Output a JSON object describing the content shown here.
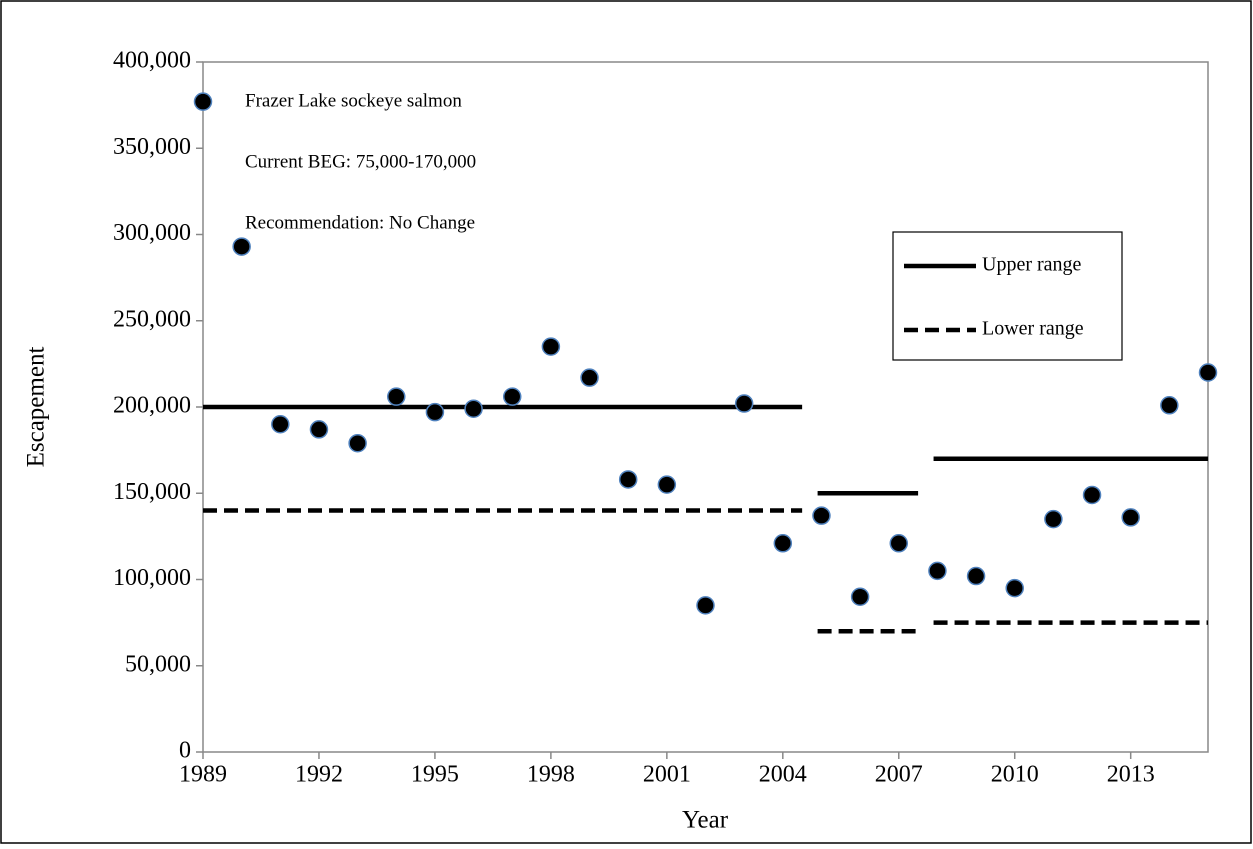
{
  "chart_data": {
    "type": "scatter",
    "annotations": [
      "Frazer  Lake sockeye salmon",
      "Current BEG: 75,000-170,000",
      "Recommendation: No Change"
    ],
    "x_label": "Year",
    "y_label": "Escapement",
    "xlim": [
      1989,
      2015
    ],
    "xticks": [
      1989,
      1992,
      1995,
      1998,
      2001,
      2004,
      2007,
      2010,
      2013
    ],
    "ylim": [
      0,
      400000
    ],
    "yticks": [
      0,
      {
        "value": 50000,
        "label": "50,000"
      },
      {
        "value": 100000,
        "label": "100,000"
      },
      {
        "value": 150000,
        "label": "150,000"
      },
      {
        "value": 200000,
        "label": "200,000"
      },
      {
        "value": 250000,
        "label": "250,000"
      },
      {
        "value": 300000,
        "label": "300,000"
      },
      {
        "value": 350000,
        "label": "350,000"
      },
      {
        "value": 400000,
        "label": "400,000"
      }
    ],
    "points": {
      "color": "#000000",
      "edge_color": "#4f81bd",
      "x": [
        1989,
        1990,
        1991,
        1992,
        1993,
        1994,
        1995,
        1996,
        1997,
        1998,
        1999,
        2000,
        2001,
        2002,
        2003,
        2004,
        2005,
        2006,
        2007,
        2008,
        2009,
        2010,
        2011,
        2012,
        2013,
        2014,
        2015
      ],
      "values": [
        377000,
        293000,
        190000,
        187000,
        179000,
        206000,
        197000,
        199000,
        206000,
        235000,
        217000,
        158000,
        155000,
        85000,
        202000,
        121000,
        137000,
        90000,
        121000,
        105000,
        102000,
        95000,
        135000,
        149000,
        136000,
        201000,
        220000
      ]
    },
    "ranges": [
      {
        "name": "Upper range",
        "style": "solid",
        "color": "#000000",
        "segments": [
          {
            "x": [
              1989,
              2004.5
            ],
            "value": 200000
          },
          {
            "x": [
              2004.9,
              2007.5
            ],
            "value": 150000
          },
          {
            "x": [
              2007.9,
              2015
            ],
            "value": 170000
          }
        ]
      },
      {
        "name": "Lower range",
        "style": "dashed",
        "color": "#000000",
        "segments": [
          {
            "x": [
              1989,
              2004.5
            ],
            "value": 140000
          },
          {
            "x": [
              2004.9,
              2007.5
            ],
            "value": 70000
          },
          {
            "x": [
              2007.9,
              2015
            ],
            "value": 75000
          }
        ]
      }
    ]
  }
}
